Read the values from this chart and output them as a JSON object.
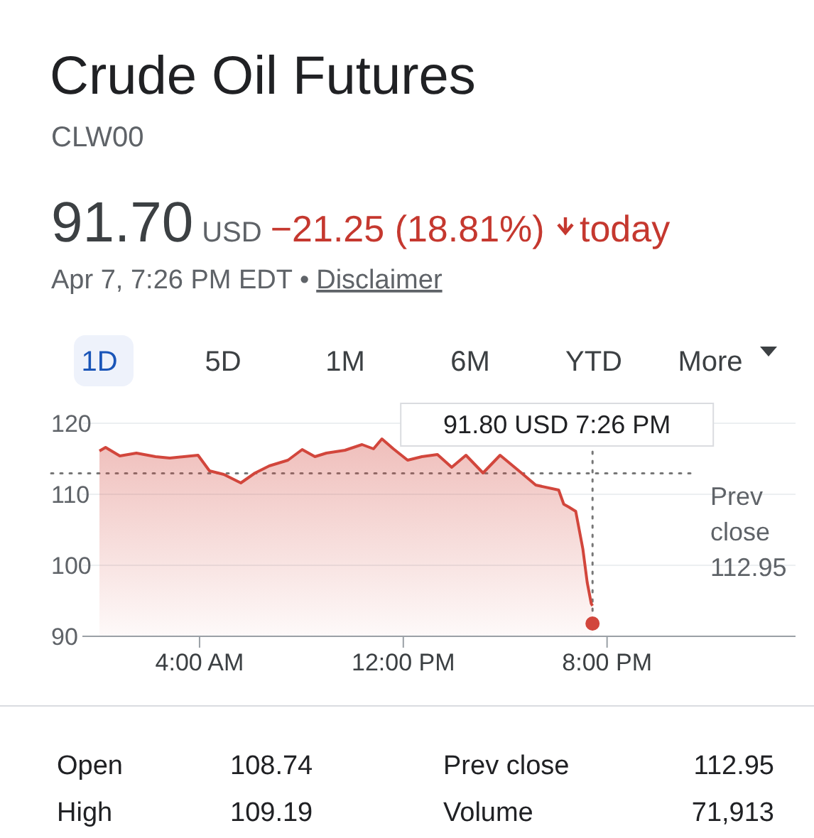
{
  "chart_data": {
    "type": "area",
    "title": "Crude Oil Futures",
    "subtitle": "CLW00",
    "x": [
      0.07,
      0.31,
      0.87,
      1.52,
      2.27,
      2.83,
      3.94,
      4.39,
      4.95,
      5.62,
      6.18,
      6.74,
      7.47,
      8.03,
      8.53,
      8.98,
      9.71,
      10.38,
      10.83,
      11.16,
      11.61,
      12.17,
      12.73,
      13.34,
      13.9,
      14.46,
      15.13,
      15.8,
      16.64,
      17.2,
      18.1,
      18.3,
      18.5,
      18.77,
      19.05,
      19.22,
      19.38,
      19.43
    ],
    "series": [
      {
        "color": "#d2463c",
        "values": [
          116.1,
          116.6,
          115.4,
          115.8,
          115.3,
          115.1,
          115.5,
          113.3,
          112.8,
          111.6,
          113,
          114,
          114.8,
          116.3,
          115.3,
          115.8,
          116.2,
          117,
          116.4,
          117.8,
          116.4,
          114.8,
          115.3,
          115.6,
          113.8,
          115.5,
          113,
          115.5,
          113,
          111.3,
          110.6,
          108.6,
          108.2,
          107.6,
          102.3,
          97.6,
          94.6,
          94.3
        ]
      },
      {
        "type": "scatter",
        "color": "#d2463c",
        "x": [
          19.43
        ],
        "values": [
          91.8
        ]
      }
    ],
    "xlim": [
      -0.6,
      27.4
    ],
    "ylim": [
      90,
      120
    ],
    "xticks": [
      {
        "value": 4,
        "label": "4:00 AM"
      },
      {
        "value": 12,
        "label": "12:00 PM"
      },
      {
        "value": 20,
        "label": "8:00 PM"
      }
    ],
    "yticks": [
      90,
      100,
      110,
      120
    ],
    "grid": "y",
    "ref_lines": [
      {
        "axis": "y",
        "value": 112.95,
        "label": "Prev close 112.95",
        "line_style": "dotted"
      },
      {
        "axis": "x",
        "value": 19.43,
        "line_style": "dotted"
      }
    ],
    "annotations": [
      "91.70",
      "USD",
      "−21.25 (18.81%)",
      "today",
      "Apr 7, 7:26 PM EDT •",
      "Disclaimer",
      "1D",
      "5D",
      "1M",
      "6M",
      "YTD",
      "More",
      "91.80 USD  7:26 PM",
      "Open",
      "108.74",
      "High",
      "109.19",
      "Prev close",
      "112.95",
      "Volume",
      "71,913"
    ]
  }
}
